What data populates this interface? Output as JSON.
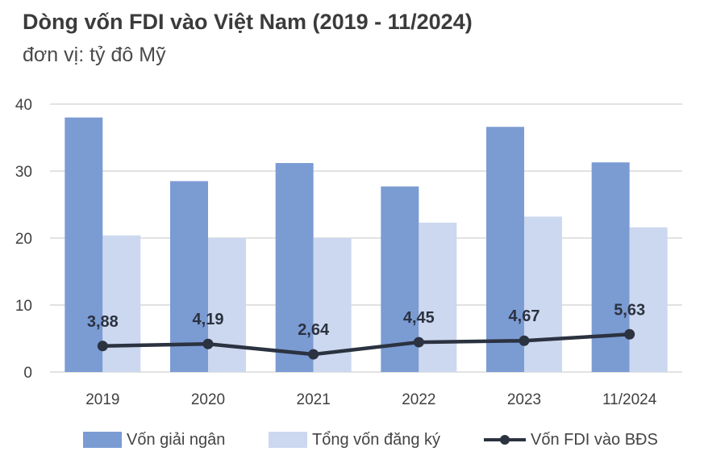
{
  "title": "Dòng vốn FDI vào Việt Nam (2019 - 11/2024)",
  "subtitle": "đơn vị: tỷ đô Mỹ",
  "colors": {
    "disbursed": "#7b9bd3",
    "registered": "#ccd8ef",
    "real_estate": "#2b3240",
    "grid": "#d9d9d9",
    "axis_text": "#404040"
  },
  "legend": {
    "disbursed": "Vốn giải ngân",
    "registered": "Tổng vốn đăng ký",
    "real_estate": "Vốn FDI vào BĐS"
  },
  "chart_data": {
    "type": "bar",
    "categories": [
      "2019",
      "2020",
      "2021",
      "2022",
      "2023",
      "11/2024"
    ],
    "series": [
      {
        "name": "Vốn giải ngân",
        "type": "bar",
        "values": [
          38.0,
          28.5,
          31.2,
          27.7,
          36.6,
          31.3
        ]
      },
      {
        "name": "Tổng vốn đăng ký",
        "type": "bar",
        "values": [
          20.4,
          20.0,
          20.0,
          22.3,
          23.2,
          21.6
        ]
      },
      {
        "name": "Vốn FDI vào BĐS",
        "type": "line",
        "values": [
          3.88,
          4.19,
          2.64,
          4.45,
          4.67,
          5.63
        ],
        "labels": [
          "3,88",
          "4,19",
          "2,64",
          "4,45",
          "4,67",
          "5,63"
        ]
      }
    ],
    "yticks": [
      "0",
      "10",
      "20",
      "30",
      "40"
    ],
    "ylim": [
      0,
      40
    ],
    "grid": true,
    "legend_position": "bottom"
  }
}
